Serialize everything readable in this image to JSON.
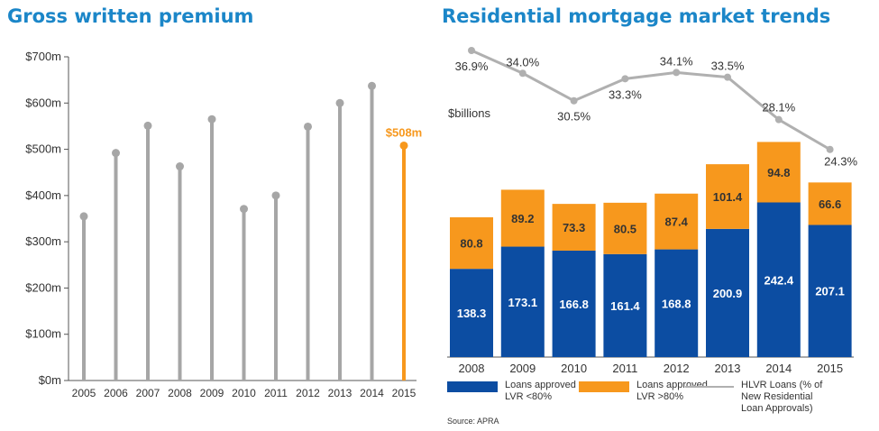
{
  "left_chart": {
    "title": "Gross written premium",
    "highlight_label": "$508m",
    "colors": {
      "stem": "#a6a6a6",
      "highlight": "#f7981d",
      "axis": "#555555"
    }
  },
  "right_chart": {
    "title": "Residential mortgage market trends",
    "unit_label": "$billions",
    "source": "Source: APRA",
    "legend": [
      {
        "label_line1": "Loans approved",
        "label_line2": "LVR <80%",
        "color": "#0c4da2"
      },
      {
        "label_line1": "Loans approved",
        "label_line2": "LVR >80%",
        "color": "#f7981d"
      },
      {
        "label_line1": "HLVR Loans (% of",
        "label_line2": "New Residential",
        "label_line3": "Loan Approvals)",
        "color": "#b0b0b0"
      }
    ]
  },
  "chart_data": [
    {
      "type": "bar",
      "title": "Gross written premium",
      "categories": [
        "2005",
        "2006",
        "2007",
        "2008",
        "2009",
        "2010",
        "2011",
        "2012",
        "2013",
        "2014",
        "2015"
      ],
      "values": [
        355,
        492,
        551,
        463,
        565,
        371,
        400,
        549,
        600,
        637,
        508
      ],
      "ylim": [
        0,
        700
      ],
      "yticks": [
        0,
        100,
        200,
        300,
        400,
        500,
        600,
        700
      ],
      "ytick_labels": [
        "$0m",
        "$100m",
        "$200m",
        "$300m",
        "$400m",
        "$500m",
        "$600m",
        "$700m"
      ],
      "highlight_index": 10,
      "grid": false
    },
    {
      "type": "bar",
      "stacked": true,
      "title": "Residential mortgage market trends",
      "categories": [
        "2008",
        "2009",
        "2010",
        "2011",
        "2012",
        "2013",
        "2014",
        "2015"
      ],
      "series": [
        {
          "name": "Loans approved LVR <80%",
          "values": [
            138.3,
            173.1,
            166.8,
            161.4,
            168.8,
            200.9,
            242.4,
            207.1
          ],
          "color": "#0c4da2"
        },
        {
          "name": "Loans approved LVR >80%",
          "values": [
            80.8,
            89.2,
            73.3,
            80.5,
            87.4,
            101.4,
            94.8,
            66.6
          ],
          "color": "#f7981d"
        }
      ],
      "ylim": [
        0,
        340
      ],
      "legend_position": "bottom"
    },
    {
      "type": "line",
      "title": "HLVR Loans (% of New Residential Loan Approvals)",
      "categories": [
        "2008",
        "2009",
        "2010",
        "2011",
        "2012",
        "2013",
        "2014",
        "2015"
      ],
      "values": [
        36.9,
        34.0,
        30.5,
        33.3,
        34.1,
        33.5,
        28.1,
        24.3
      ],
      "value_labels": [
        "36.9%",
        "34.0%",
        "30.5%",
        "33.3%",
        "34.1%",
        "33.5%",
        "28.1%",
        "24.3%"
      ],
      "ylim": [
        23,
        40
      ],
      "color": "#b0b0b0"
    }
  ]
}
